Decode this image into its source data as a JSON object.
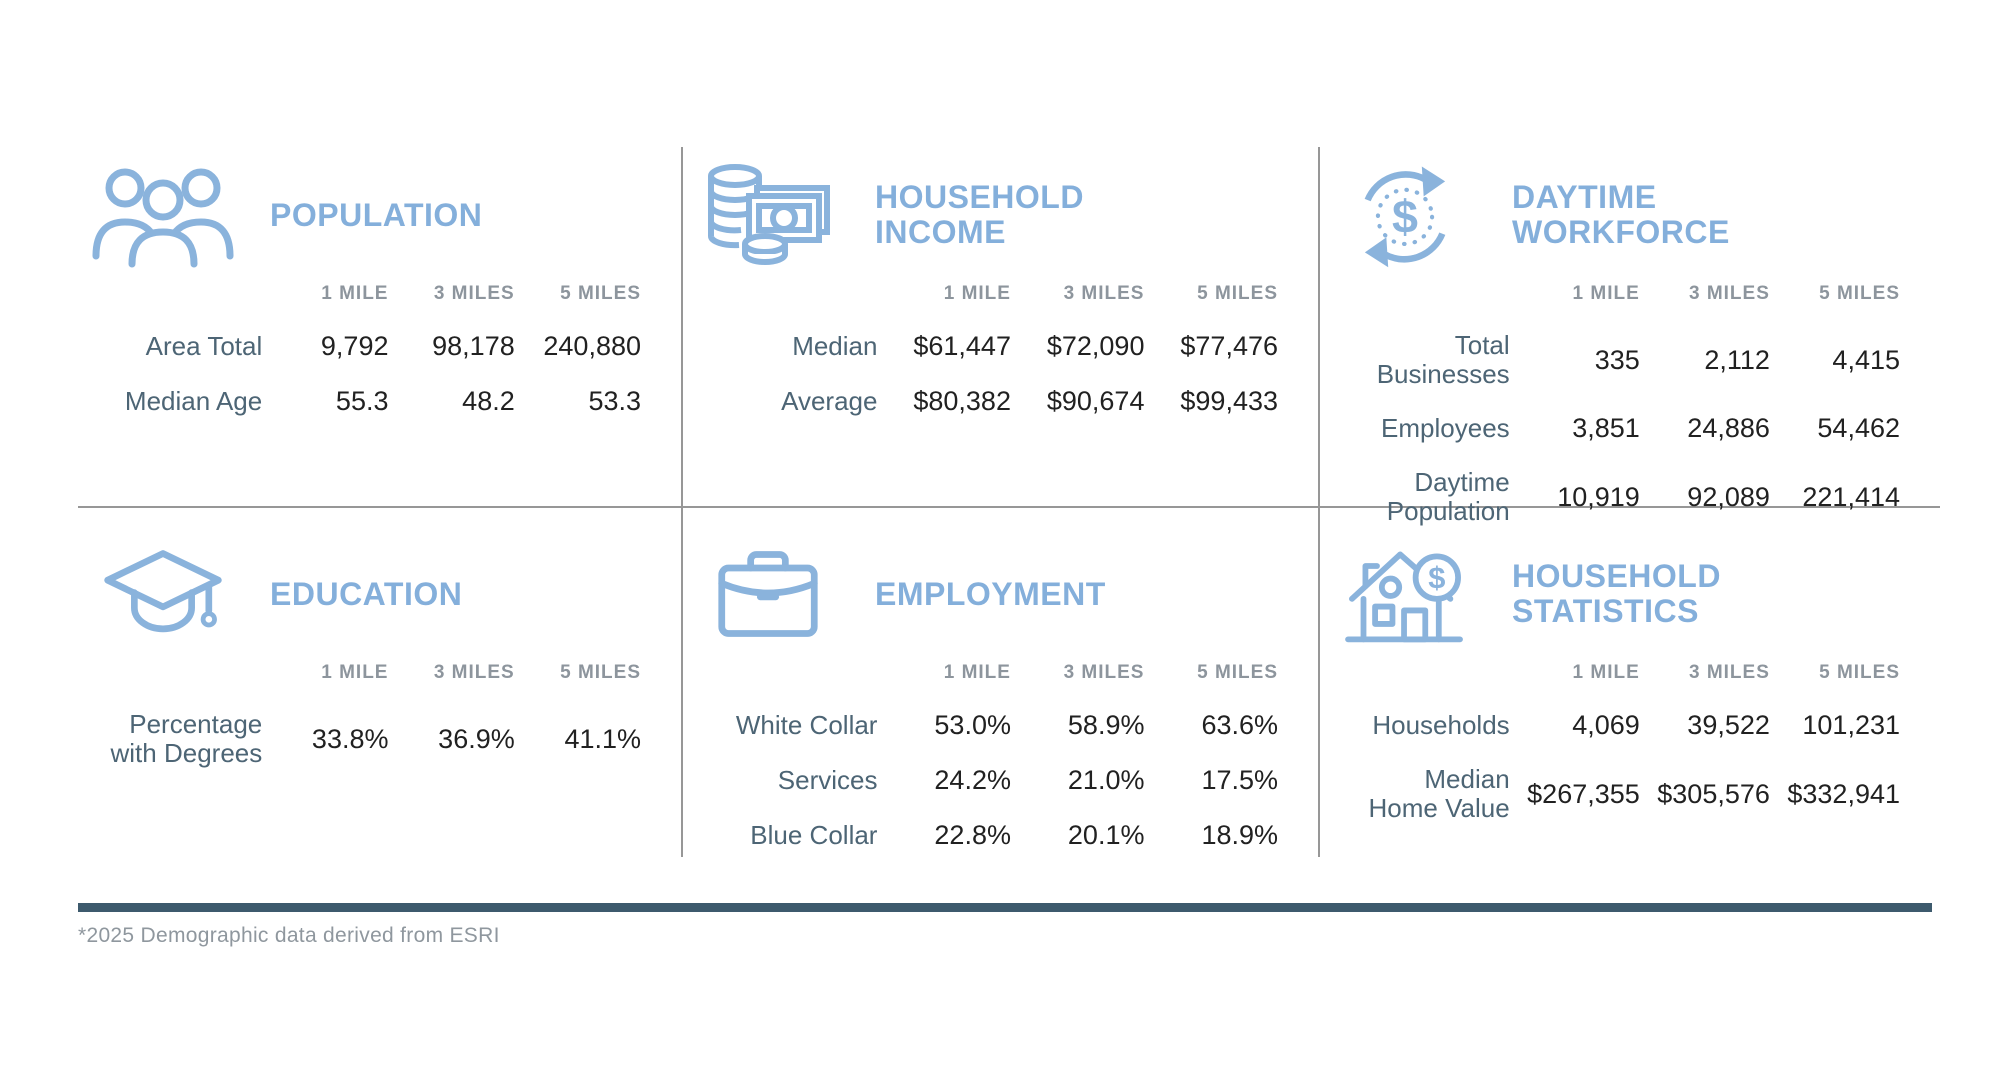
{
  "columns": [
    "1 MILE",
    "3 MILES",
    "5 MILES"
  ],
  "panels": {
    "population": {
      "title": "POPULATION",
      "icon": "people-group-icon",
      "rows": [
        {
          "label": "Area Total",
          "values": [
            "9,792",
            "98,178",
            "240,880"
          ]
        },
        {
          "label": "Median Age",
          "values": [
            "55.3",
            "48.2",
            "53.3"
          ]
        }
      ]
    },
    "household_income": {
      "title": "HOUSEHOLD\nINCOME",
      "icon": "coins-banknote-icon",
      "rows": [
        {
          "label": "Median",
          "values": [
            "$61,447",
            "$72,090",
            "$77,476"
          ]
        },
        {
          "label": "Average",
          "values": [
            "$80,382",
            "$90,674",
            "$99,433"
          ]
        }
      ]
    },
    "daytime_workforce": {
      "title": "DAYTIME\nWORKFORCE",
      "icon": "dollar-cycle-icon",
      "rows": [
        {
          "label": "Total\nBusinesses",
          "values": [
            "335",
            "2,112",
            "4,415"
          ]
        },
        {
          "label": "Employees",
          "values": [
            "3,851",
            "24,886",
            "54,462"
          ]
        },
        {
          "label": "Daytime\nPopulation",
          "values": [
            "10,919",
            "92,089",
            "221,414"
          ]
        }
      ]
    },
    "education": {
      "title": "EDUCATION",
      "icon": "graduation-cap-icon",
      "rows": [
        {
          "label": "Percentage\nwith Degrees",
          "values": [
            "33.8%",
            "36.9%",
            "41.1%"
          ]
        }
      ]
    },
    "employment": {
      "title": "EMPLOYMENT",
      "icon": "briefcase-icon",
      "rows": [
        {
          "label": "White Collar",
          "values": [
            "53.0%",
            "58.9%",
            "63.6%"
          ]
        },
        {
          "label": "Services",
          "values": [
            "24.2%",
            "21.0%",
            "17.5%"
          ]
        },
        {
          "label": "Blue Collar",
          "values": [
            "22.8%",
            "20.1%",
            "18.9%"
          ]
        }
      ]
    },
    "household_statistics": {
      "title": "HOUSEHOLD\nSTATISTICS",
      "icon": "house-dollar-icon",
      "rows": [
        {
          "label": "Households",
          "values": [
            "4,069",
            "39,522",
            "101,231"
          ]
        },
        {
          "label": "Median\nHome Value",
          "values": [
            "$267,355",
            "$305,576",
            "$332,941"
          ]
        }
      ]
    }
  },
  "footer": {
    "note": "*2025 Demographic data derived from ESRI"
  },
  "colors": {
    "accent_blue": "#84AFDB",
    "icon_blue": "#8AB3DC",
    "row_label_slate": "#4D6575",
    "column_header_gray": "#8D959D",
    "value_dark": "#212121",
    "divider_gray": "#979797",
    "footer_bar_slate": "#3D5A6D",
    "footnote_gray": "#8F979E"
  }
}
